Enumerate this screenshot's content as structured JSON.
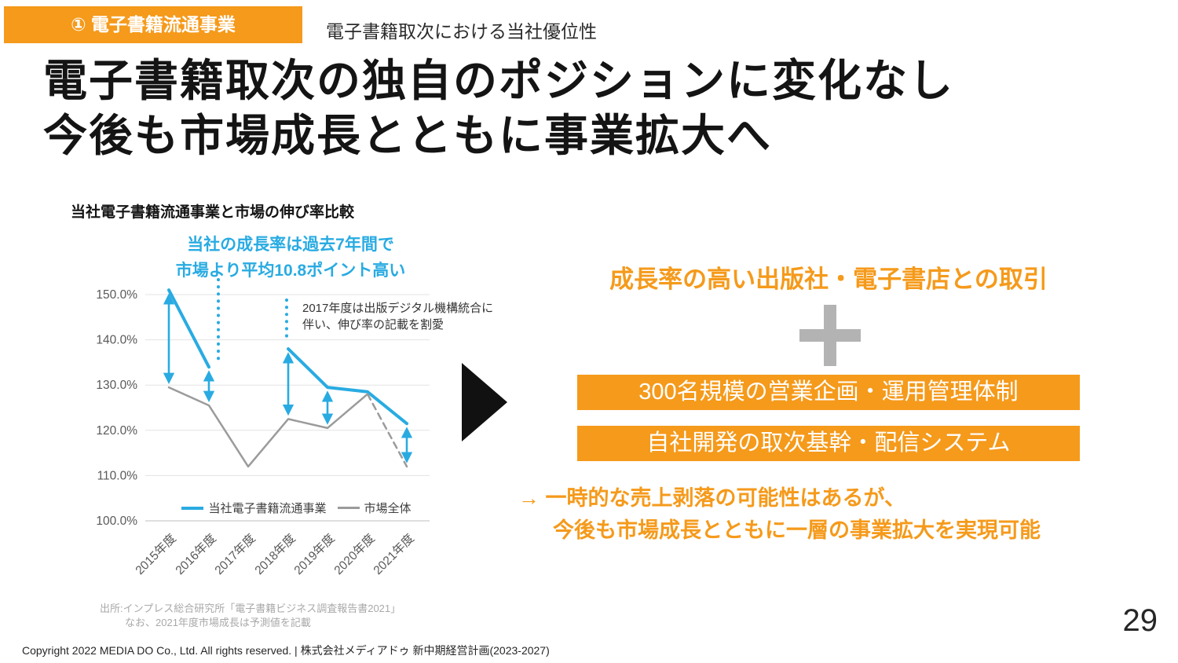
{
  "header": {
    "tag": "① 電子書籍流通事業",
    "subtitle": "電子書籍取次における当社優位性"
  },
  "title": {
    "line1": "電子書籍取次の独自のポジションに変化なし",
    "line2": "今後も市場成長とともに事業拡大へ"
  },
  "chart": {
    "title": "当社電子書籍流通事業と市場の伸び率比較",
    "callout_line1": "当社の成長率は過去7年間で",
    "callout_line2": "市場より平均10.8ポイント高い",
    "note_line1": "2017年度は出版デジタル機構統合に",
    "note_line2": "伴い、伸び率の記載を割愛"
  },
  "chart_data": {
    "type": "line",
    "categories": [
      "2015年度",
      "2016年度",
      "2017年度",
      "2018年度",
      "2019年度",
      "2020年度",
      "2021年度"
    ],
    "series": [
      {
        "name": "当社電子書籍流通事業",
        "color": "#29ABE2",
        "width": 4,
        "values": [
          151.0,
          134.0,
          null,
          138.0,
          129.5,
          128.5,
          121.5
        ]
      },
      {
        "name": "市場全体",
        "color": "#9b9b9b",
        "width": 2.5,
        "values": [
          129.5,
          125.5,
          112.0,
          122.5,
          120.5,
          128.0,
          null
        ]
      },
      {
        "name": "市場全体(2021年度は予測値)",
        "color": "#9b9b9b",
        "width": 2.5,
        "dashed": true,
        "values": [
          null,
          null,
          null,
          null,
          null,
          128.0,
          112.0
        ]
      }
    ],
    "comparison_arrows": [
      0,
      1,
      3,
      4,
      6
    ],
    "ylim": [
      100,
      155
    ],
    "yticks": [
      {
        "value": 100,
        "label": "100.0%"
      },
      {
        "value": 110,
        "label": "110.0%"
      },
      {
        "value": 120,
        "label": "120.0%"
      },
      {
        "value": 130,
        "label": "130.0%"
      },
      {
        "value": 140,
        "label": "140.0%"
      },
      {
        "value": 150,
        "label": "150.0%"
      }
    ],
    "grid": true,
    "legend_position": "bottom-inside"
  },
  "right_panel": {
    "heading": "成長率の高い出版社・電子書店との取引",
    "box1": "300名規模の営業企画・運用管理体制",
    "box2": "自社開発の取次基幹・配信システム",
    "conclusion_line1": "→ 一時的な売上剥落の可能性はあるが、",
    "conclusion_line2": "今後も市場成長とともに一層の事業拡大を実現可能"
  },
  "footer": {
    "source_line1": "出所:インプレス総合研究所「電子書籍ビジネス調査報告書2021」",
    "source_line2": "なお、2021年度市場成長は予測値を記載",
    "copyright": "Copyright 2022 MEDIA DO Co., Ltd. All rights reserved. | 株式会社メディアドゥ 新中期経営計画(2023-2027)",
    "page_number": "29"
  },
  "colors": {
    "accent_orange": "#F59A1B",
    "accent_cyan": "#29ABE2",
    "line_gray": "#9b9b9b",
    "pointer_black": "#111111"
  }
}
